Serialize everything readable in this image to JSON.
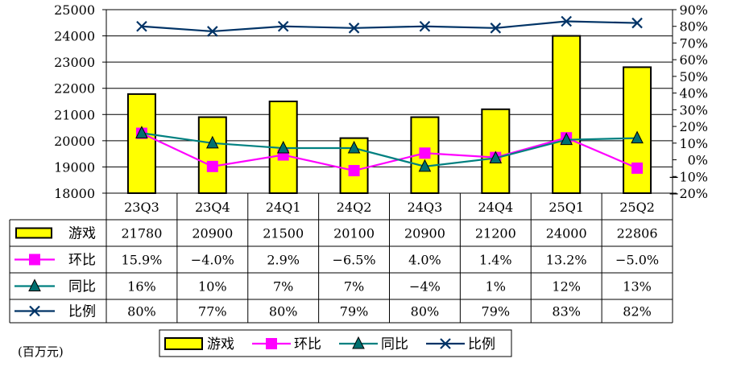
{
  "unit_note": "(百万元)",
  "chart_data": {
    "type": "bar",
    "categories": [
      "23Q3",
      "23Q4",
      "24Q1",
      "24Q2",
      "24Q3",
      "24Q4",
      "25Q1",
      "25Q2"
    ],
    "left_axis": {
      "ylim": [
        18000,
        25000
      ],
      "ticks": [
        "18000",
        "19000",
        "20000",
        "21000",
        "22000",
        "23000",
        "24000",
        "25000"
      ]
    },
    "right_axis": {
      "ylim": [
        -20,
        90
      ],
      "ticks": [
        "-20%",
        "-10%",
        "0%",
        "10%",
        "20%",
        "30%",
        "40%",
        "50%",
        "60%",
        "70%",
        "80%",
        "90%"
      ]
    },
    "grid": true,
    "legend_position": "bottom",
    "series": [
      {
        "name": "游戏",
        "type": "bar",
        "axis": "left",
        "color": "#ffff00",
        "marker": "bar",
        "values": [
          21780,
          20900,
          21500,
          20100,
          20900,
          21200,
          24000,
          22806
        ],
        "labels": [
          "21780",
          "20900",
          "21500",
          "20100",
          "20900",
          "21200",
          "24000",
          "22806"
        ]
      },
      {
        "name": "环比",
        "type": "line",
        "axis": "right",
        "color": "#ff00ff",
        "marker": "square",
        "values": [
          15.9,
          -4.0,
          2.9,
          -6.5,
          4.0,
          1.4,
          13.2,
          -5.0
        ],
        "labels": [
          "15.9%",
          "-4.0%",
          "2.9%",
          "-6.5%",
          "4.0%",
          "1.4%",
          "13.2%",
          "-5.0%"
        ]
      },
      {
        "name": "同比",
        "type": "line",
        "axis": "right",
        "color": "#008080",
        "marker": "triangle",
        "values": [
          16,
          10,
          7,
          7,
          -4,
          1,
          12,
          13
        ],
        "labels": [
          "16%",
          "10%",
          "7%",
          "7%",
          "-4%",
          "1%",
          "12%",
          "13%"
        ]
      },
      {
        "name": "比例",
        "type": "line",
        "axis": "right",
        "color": "#003366",
        "marker": "x",
        "values": [
          80,
          77,
          80,
          79,
          80,
          79,
          83,
          82
        ],
        "labels": [
          "80%",
          "77%",
          "80%",
          "79%",
          "80%",
          "79%",
          "83%",
          "82%"
        ]
      }
    ]
  }
}
